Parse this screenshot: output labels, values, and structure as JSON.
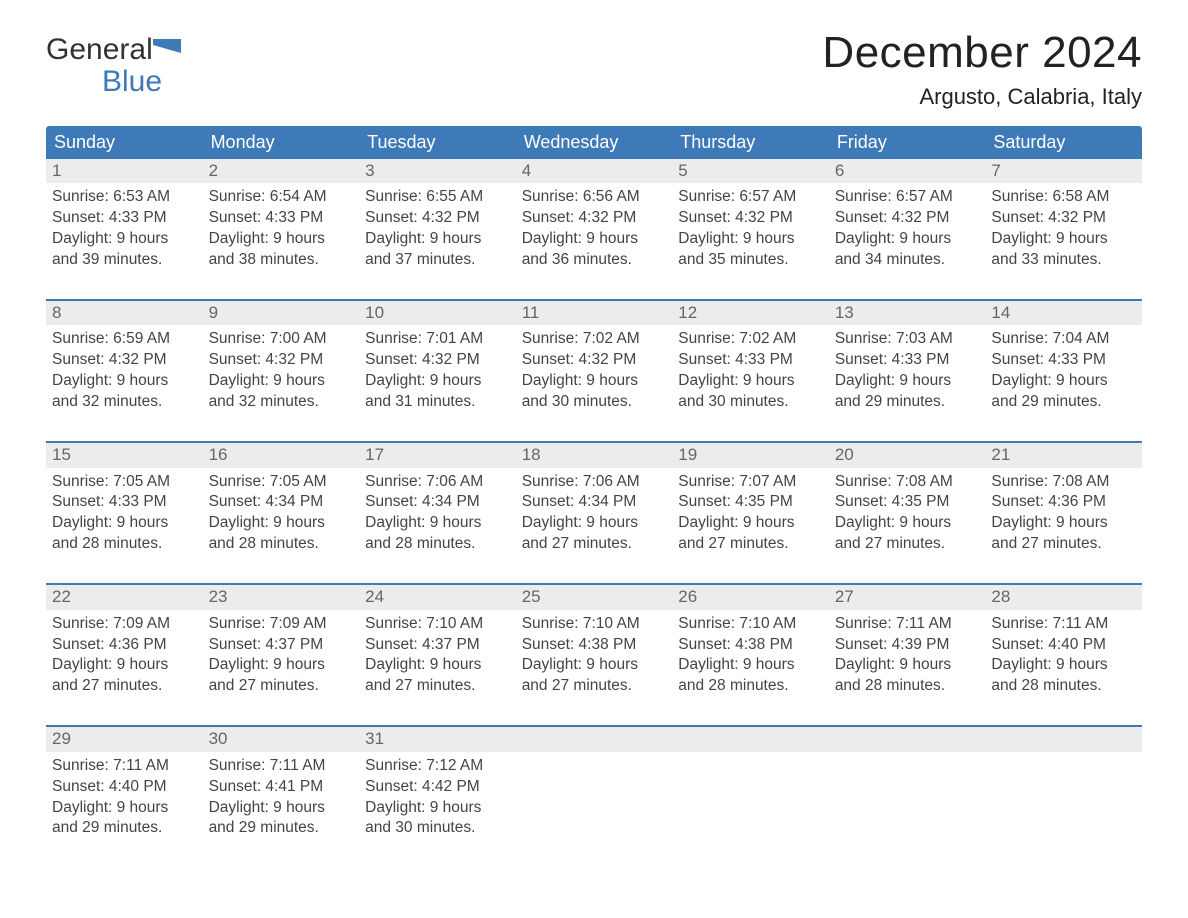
{
  "logo": {
    "word1": "General",
    "word2": "Blue",
    "flag_color": "#3f7ab8"
  },
  "title": "December 2024",
  "subtitle": "Argusto, Calabria, Italy",
  "colors": {
    "accent": "#3f7ab8",
    "row_header_bg": "#ececec",
    "week_border": "#3f7ab8",
    "text": "#333333",
    "day_num": "#666666",
    "white": "#ffffff"
  },
  "typography": {
    "title_fontsize": 44,
    "subtitle_fontsize": 22,
    "header_fontsize": 18,
    "daynum_fontsize": 17,
    "body_fontsize": 15.5,
    "font_family": "Arial"
  },
  "day_headers": [
    "Sunday",
    "Monday",
    "Tuesday",
    "Wednesday",
    "Thursday",
    "Friday",
    "Saturday"
  ],
  "weeks": [
    [
      {
        "n": "1",
        "sunrise": "6:53 AM",
        "sunset": "4:33 PM",
        "daylight": "9 hours and 39 minutes."
      },
      {
        "n": "2",
        "sunrise": "6:54 AM",
        "sunset": "4:33 PM",
        "daylight": "9 hours and 38 minutes."
      },
      {
        "n": "3",
        "sunrise": "6:55 AM",
        "sunset": "4:32 PM",
        "daylight": "9 hours and 37 minutes."
      },
      {
        "n": "4",
        "sunrise": "6:56 AM",
        "sunset": "4:32 PM",
        "daylight": "9 hours and 36 minutes."
      },
      {
        "n": "5",
        "sunrise": "6:57 AM",
        "sunset": "4:32 PM",
        "daylight": "9 hours and 35 minutes."
      },
      {
        "n": "6",
        "sunrise": "6:57 AM",
        "sunset": "4:32 PM",
        "daylight": "9 hours and 34 minutes."
      },
      {
        "n": "7",
        "sunrise": "6:58 AM",
        "sunset": "4:32 PM",
        "daylight": "9 hours and 33 minutes."
      }
    ],
    [
      {
        "n": "8",
        "sunrise": "6:59 AM",
        "sunset": "4:32 PM",
        "daylight": "9 hours and 32 minutes."
      },
      {
        "n": "9",
        "sunrise": "7:00 AM",
        "sunset": "4:32 PM",
        "daylight": "9 hours and 32 minutes."
      },
      {
        "n": "10",
        "sunrise": "7:01 AM",
        "sunset": "4:32 PM",
        "daylight": "9 hours and 31 minutes."
      },
      {
        "n": "11",
        "sunrise": "7:02 AM",
        "sunset": "4:32 PM",
        "daylight": "9 hours and 30 minutes."
      },
      {
        "n": "12",
        "sunrise": "7:02 AM",
        "sunset": "4:33 PM",
        "daylight": "9 hours and 30 minutes."
      },
      {
        "n": "13",
        "sunrise": "7:03 AM",
        "sunset": "4:33 PM",
        "daylight": "9 hours and 29 minutes."
      },
      {
        "n": "14",
        "sunrise": "7:04 AM",
        "sunset": "4:33 PM",
        "daylight": "9 hours and 29 minutes."
      }
    ],
    [
      {
        "n": "15",
        "sunrise": "7:05 AM",
        "sunset": "4:33 PM",
        "daylight": "9 hours and 28 minutes."
      },
      {
        "n": "16",
        "sunrise": "7:05 AM",
        "sunset": "4:34 PM",
        "daylight": "9 hours and 28 minutes."
      },
      {
        "n": "17",
        "sunrise": "7:06 AM",
        "sunset": "4:34 PM",
        "daylight": "9 hours and 28 minutes."
      },
      {
        "n": "18",
        "sunrise": "7:06 AM",
        "sunset": "4:34 PM",
        "daylight": "9 hours and 27 minutes."
      },
      {
        "n": "19",
        "sunrise": "7:07 AM",
        "sunset": "4:35 PM",
        "daylight": "9 hours and 27 minutes."
      },
      {
        "n": "20",
        "sunrise": "7:08 AM",
        "sunset": "4:35 PM",
        "daylight": "9 hours and 27 minutes."
      },
      {
        "n": "21",
        "sunrise": "7:08 AM",
        "sunset": "4:36 PM",
        "daylight": "9 hours and 27 minutes."
      }
    ],
    [
      {
        "n": "22",
        "sunrise": "7:09 AM",
        "sunset": "4:36 PM",
        "daylight": "9 hours and 27 minutes."
      },
      {
        "n": "23",
        "sunrise": "7:09 AM",
        "sunset": "4:37 PM",
        "daylight": "9 hours and 27 minutes."
      },
      {
        "n": "24",
        "sunrise": "7:10 AM",
        "sunset": "4:37 PM",
        "daylight": "9 hours and 27 minutes."
      },
      {
        "n": "25",
        "sunrise": "7:10 AM",
        "sunset": "4:38 PM",
        "daylight": "9 hours and 27 minutes."
      },
      {
        "n": "26",
        "sunrise": "7:10 AM",
        "sunset": "4:38 PM",
        "daylight": "9 hours and 28 minutes."
      },
      {
        "n": "27",
        "sunrise": "7:11 AM",
        "sunset": "4:39 PM",
        "daylight": "9 hours and 28 minutes."
      },
      {
        "n": "28",
        "sunrise": "7:11 AM",
        "sunset": "4:40 PM",
        "daylight": "9 hours and 28 minutes."
      }
    ],
    [
      {
        "n": "29",
        "sunrise": "7:11 AM",
        "sunset": "4:40 PM",
        "daylight": "9 hours and 29 minutes."
      },
      {
        "n": "30",
        "sunrise": "7:11 AM",
        "sunset": "4:41 PM",
        "daylight": "9 hours and 29 minutes."
      },
      {
        "n": "31",
        "sunrise": "7:12 AM",
        "sunset": "4:42 PM",
        "daylight": "9 hours and 30 minutes."
      },
      null,
      null,
      null,
      null
    ]
  ],
  "labels": {
    "sunrise_prefix": "Sunrise: ",
    "sunset_prefix": "Sunset: ",
    "daylight_prefix": "Daylight: "
  }
}
